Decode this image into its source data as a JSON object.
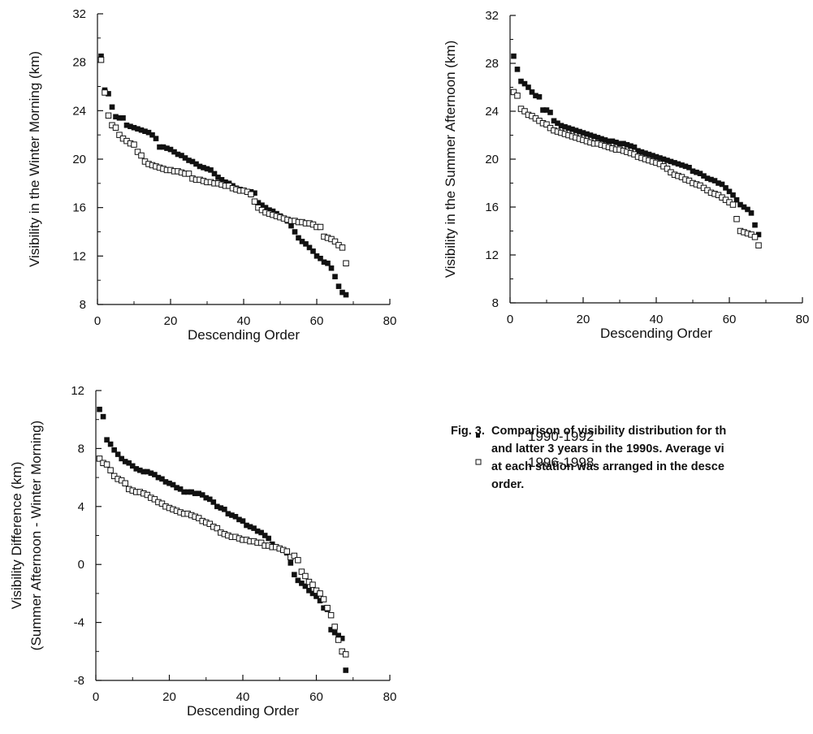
{
  "chart_data": [
    {
      "type": "scatter",
      "panel": "top-left",
      "xlabel": "Descending Order",
      "ylabel": "Visibility in the Winter Morning (km)",
      "xlim": [
        0,
        80
      ],
      "ylim": [
        8,
        32
      ],
      "xticks": [
        0,
        20,
        40,
        60,
        80
      ],
      "yticks": [
        8,
        12,
        16,
        20,
        24,
        28,
        32
      ],
      "grid": false,
      "series": [
        {
          "name": "1990-1992",
          "marker": "filled-square",
          "x": [
            1,
            2,
            3,
            4,
            5,
            6,
            7,
            8,
            9,
            10,
            11,
            12,
            13,
            14,
            15,
            16,
            17,
            18,
            19,
            20,
            21,
            22,
            23,
            24,
            25,
            26,
            27,
            28,
            29,
            30,
            31,
            32,
            33,
            34,
            35,
            36,
            37,
            38,
            39,
            40,
            41,
            42,
            43,
            44,
            45,
            46,
            47,
            48,
            49,
            50,
            51,
            52,
            53,
            54,
            55,
            56,
            57,
            58,
            59,
            60,
            61,
            62,
            63,
            64,
            65,
            66,
            67,
            68
          ],
          "y": [
            28.5,
            25.7,
            25.4,
            24.3,
            23.5,
            23.4,
            23.4,
            22.8,
            22.7,
            22.6,
            22.5,
            22.4,
            22.3,
            22.2,
            22.0,
            21.7,
            21.0,
            21.0,
            20.9,
            20.8,
            20.6,
            20.4,
            20.3,
            20.1,
            19.9,
            19.8,
            19.6,
            19.4,
            19.3,
            19.2,
            19.1,
            18.8,
            18.5,
            18.3,
            18.1,
            18.0,
            17.8,
            17.6,
            17.5,
            17.4,
            17.3,
            17.3,
            17.2,
            16.4,
            16.2,
            16.0,
            15.8,
            15.7,
            15.5,
            15.3,
            15.1,
            14.9,
            14.5,
            14.0,
            13.5,
            13.2,
            13.0,
            12.7,
            12.4,
            12.0,
            11.8,
            11.5,
            11.4,
            11.0,
            10.3,
            9.5,
            9.0,
            8.8
          ]
        },
        {
          "name": "1996-1998",
          "marker": "open-square",
          "x": [
            1,
            2,
            3,
            4,
            5,
            6,
            7,
            8,
            9,
            10,
            11,
            12,
            13,
            14,
            15,
            16,
            17,
            18,
            19,
            20,
            21,
            22,
            23,
            24,
            25,
            26,
            27,
            28,
            29,
            30,
            31,
            32,
            33,
            34,
            35,
            36,
            37,
            38,
            39,
            40,
            41,
            42,
            43,
            44,
            45,
            46,
            47,
            48,
            49,
            50,
            51,
            52,
            53,
            54,
            55,
            56,
            57,
            58,
            59,
            60,
            61,
            62,
            63,
            64,
            65,
            66,
            67,
            68
          ],
          "y": [
            28.2,
            25.5,
            23.6,
            22.8,
            22.6,
            22.0,
            21.7,
            21.5,
            21.3,
            21.2,
            20.6,
            20.3,
            19.8,
            19.6,
            19.5,
            19.4,
            19.3,
            19.2,
            19.1,
            19.1,
            19.0,
            19.0,
            18.9,
            18.8,
            18.8,
            18.4,
            18.3,
            18.3,
            18.2,
            18.1,
            18.1,
            18.0,
            18.0,
            17.9,
            17.8,
            17.8,
            17.6,
            17.5,
            17.4,
            17.4,
            17.3,
            17.1,
            16.5,
            16.0,
            15.8,
            15.6,
            15.5,
            15.4,
            15.3,
            15.2,
            15.1,
            15.0,
            14.9,
            14.9,
            14.8,
            14.8,
            14.7,
            14.7,
            14.6,
            14.4,
            14.4,
            13.6,
            13.5,
            13.4,
            13.2,
            12.9,
            12.7,
            11.4
          ]
        }
      ]
    },
    {
      "type": "scatter",
      "panel": "top-right",
      "xlabel": "Descending Order",
      "ylabel": "Visibility in the Summer Afternoon (km)",
      "xlim": [
        0,
        80
      ],
      "ylim": [
        8,
        32
      ],
      "xticks": [
        0,
        20,
        40,
        60,
        80
      ],
      "yticks": [
        8,
        12,
        16,
        20,
        24,
        28,
        32
      ],
      "grid": false,
      "series": [
        {
          "name": "1990-1992",
          "marker": "filled-square",
          "x": [
            1,
            2,
            3,
            4,
            5,
            6,
            7,
            8,
            9,
            10,
            11,
            12,
            13,
            14,
            15,
            16,
            17,
            18,
            19,
            20,
            21,
            22,
            23,
            24,
            25,
            26,
            27,
            28,
            29,
            30,
            31,
            32,
            33,
            34,
            35,
            36,
            37,
            38,
            39,
            40,
            41,
            42,
            43,
            44,
            45,
            46,
            47,
            48,
            49,
            50,
            51,
            52,
            53,
            54,
            55,
            56,
            57,
            58,
            59,
            60,
            61,
            62,
            63,
            64,
            65,
            66,
            67,
            68
          ],
          "y": [
            28.6,
            27.5,
            26.5,
            26.3,
            26.0,
            25.6,
            25.3,
            25.2,
            24.1,
            24.1,
            23.9,
            23.2,
            23.0,
            22.8,
            22.7,
            22.6,
            22.5,
            22.4,
            22.3,
            22.2,
            22.1,
            22.0,
            21.9,
            21.8,
            21.7,
            21.6,
            21.5,
            21.5,
            21.4,
            21.3,
            21.3,
            21.2,
            21.1,
            21.0,
            20.7,
            20.6,
            20.5,
            20.4,
            20.3,
            20.2,
            20.1,
            20.0,
            19.9,
            19.8,
            19.7,
            19.6,
            19.5,
            19.4,
            19.3,
            19.0,
            18.9,
            18.8,
            18.6,
            18.4,
            18.3,
            18.2,
            18.0,
            17.9,
            17.6,
            17.3,
            17.0,
            16.6,
            16.2,
            16.0,
            15.8,
            15.5,
            14.5,
            13.7
          ]
        },
        {
          "name": "1996-1998",
          "marker": "open-square",
          "x": [
            1,
            2,
            3,
            4,
            5,
            6,
            7,
            8,
            9,
            10,
            11,
            12,
            13,
            14,
            15,
            16,
            17,
            18,
            19,
            20,
            21,
            22,
            23,
            24,
            25,
            26,
            27,
            28,
            29,
            30,
            31,
            32,
            33,
            34,
            35,
            36,
            37,
            38,
            39,
            40,
            41,
            42,
            43,
            44,
            45,
            46,
            47,
            48,
            49,
            50,
            51,
            52,
            53,
            54,
            55,
            56,
            57,
            58,
            59,
            60,
            61,
            62,
            63,
            64,
            65,
            66,
            67,
            68
          ],
          "y": [
            25.6,
            25.3,
            24.2,
            24.0,
            23.7,
            23.6,
            23.4,
            23.2,
            23.0,
            22.9,
            22.6,
            22.4,
            22.3,
            22.2,
            22.1,
            22.0,
            21.9,
            21.8,
            21.7,
            21.6,
            21.5,
            21.4,
            21.3,
            21.3,
            21.2,
            21.1,
            21.0,
            20.9,
            20.8,
            20.8,
            20.7,
            20.6,
            20.5,
            20.4,
            20.2,
            20.1,
            20.0,
            19.9,
            19.8,
            19.7,
            19.6,
            19.4,
            19.2,
            18.9,
            18.7,
            18.6,
            18.5,
            18.3,
            18.2,
            18.0,
            17.9,
            17.8,
            17.6,
            17.4,
            17.2,
            17.1,
            17.0,
            16.8,
            16.6,
            16.4,
            16.2,
            15.0,
            14.0,
            13.9,
            13.8,
            13.7,
            13.5,
            12.8
          ]
        }
      ]
    },
    {
      "type": "scatter",
      "panel": "bottom-left",
      "xlabel": "Descending Order",
      "ylabel": "Visibility Difference (km)",
      "ylabel2": "(Summer Afternoon - Winter Morning)",
      "xlim": [
        0,
        80
      ],
      "ylim": [
        -8,
        12
      ],
      "xticks": [
        0,
        20,
        40,
        60,
        80
      ],
      "yticks": [
        -8,
        -4,
        0,
        4,
        8,
        12
      ],
      "grid": false,
      "series": [
        {
          "name": "1990-1992",
          "marker": "filled-square",
          "x": [
            1,
            2,
            3,
            4,
            5,
            6,
            7,
            8,
            9,
            10,
            11,
            12,
            13,
            14,
            15,
            16,
            17,
            18,
            19,
            20,
            21,
            22,
            23,
            24,
            25,
            26,
            27,
            28,
            29,
            30,
            31,
            32,
            33,
            34,
            35,
            36,
            37,
            38,
            39,
            40,
            41,
            42,
            43,
            44,
            45,
            46,
            47,
            48,
            49,
            50,
            51,
            52,
            53,
            54,
            55,
            56,
            57,
            58,
            59,
            60,
            61,
            62,
            63,
            64,
            65,
            66,
            67,
            68
          ],
          "y": [
            10.7,
            10.2,
            8.6,
            8.3,
            7.9,
            7.6,
            7.3,
            7.1,
            7.0,
            6.8,
            6.6,
            6.5,
            6.4,
            6.4,
            6.3,
            6.2,
            6.0,
            5.9,
            5.7,
            5.6,
            5.5,
            5.3,
            5.2,
            5.0,
            5.0,
            5.0,
            4.9,
            4.9,
            4.8,
            4.6,
            4.5,
            4.3,
            4.0,
            3.9,
            3.8,
            3.5,
            3.4,
            3.3,
            3.1,
            3.0,
            2.7,
            2.6,
            2.5,
            2.3,
            2.2,
            2.0,
            1.8,
            1.4,
            1.2,
            1.1,
            1.0,
            0.8,
            0.1,
            -0.7,
            -1.1,
            -1.3,
            -1.5,
            -1.8,
            -2.0,
            -2.2,
            -2.5,
            -3.0,
            -3.1,
            -4.5,
            -4.7,
            -4.9,
            -5.1,
            -7.3
          ]
        },
        {
          "name": "1996-1998",
          "marker": "open-square",
          "x": [
            1,
            2,
            3,
            4,
            5,
            6,
            7,
            8,
            9,
            10,
            11,
            12,
            13,
            14,
            15,
            16,
            17,
            18,
            19,
            20,
            21,
            22,
            23,
            24,
            25,
            26,
            27,
            28,
            29,
            30,
            31,
            32,
            33,
            34,
            35,
            36,
            37,
            38,
            39,
            40,
            41,
            42,
            43,
            44,
            45,
            46,
            47,
            48,
            49,
            50,
            51,
            52,
            53,
            54,
            55,
            56,
            57,
            58,
            59,
            60,
            61,
            62,
            63,
            64,
            65,
            66,
            67,
            68
          ],
          "y": [
            7.3,
            7.0,
            6.9,
            6.5,
            6.1,
            5.9,
            5.8,
            5.6,
            5.2,
            5.1,
            5.0,
            5.0,
            4.9,
            4.8,
            4.6,
            4.5,
            4.3,
            4.2,
            4.0,
            3.9,
            3.8,
            3.7,
            3.6,
            3.5,
            3.5,
            3.4,
            3.3,
            3.2,
            3.0,
            2.9,
            2.8,
            2.6,
            2.5,
            2.2,
            2.1,
            2.0,
            1.9,
            1.9,
            1.8,
            1.7,
            1.7,
            1.6,
            1.6,
            1.5,
            1.5,
            1.3,
            1.3,
            1.2,
            1.2,
            1.1,
            1.0,
            0.9,
            0.5,
            0.6,
            0.3,
            -0.5,
            -0.8,
            -1.2,
            -1.4,
            -1.8,
            -2.0,
            -2.4,
            -3.0,
            -3.5,
            -4.3,
            -5.2,
            -6.0,
            -6.2
          ]
        }
      ]
    }
  ],
  "legend": {
    "placement": "right of bottom-left panel",
    "items": [
      {
        "label": "1990-1992",
        "marker": "filled-square"
      },
      {
        "label": "1996-1998",
        "marker": "open-square"
      }
    ]
  },
  "caption": {
    "number": "Fig. 3.",
    "lines": [
      "Comparison of visibility distribution for th",
      "and latter 3 years in the 1990s. Average vi",
      "at each station was arranged in the desce",
      "order."
    ]
  },
  "colors": {
    "ink": "#111111",
    "background": "#ffffff"
  }
}
